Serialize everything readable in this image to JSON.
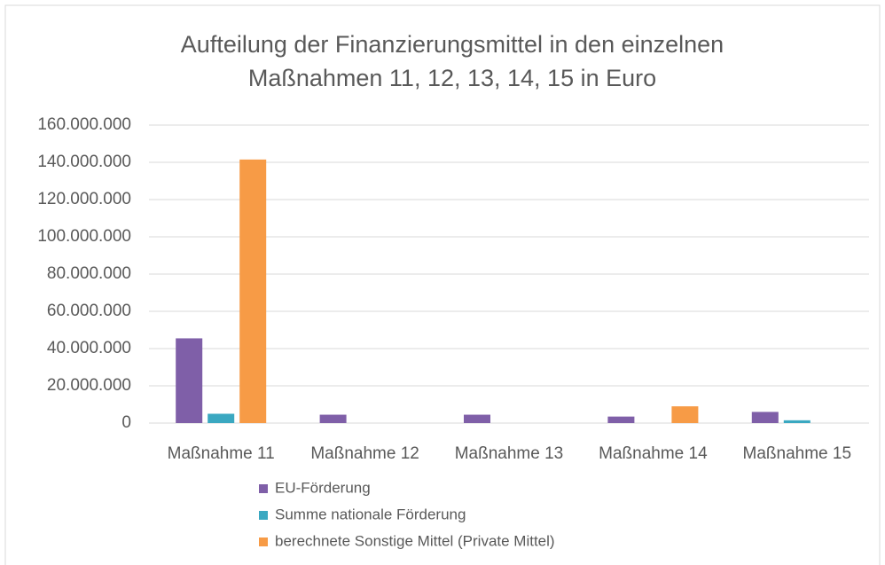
{
  "chart_data": {
    "type": "bar",
    "title": [
      "Aufteilung der Finanzierungsmittel in den einzelnen",
      "Maßnahmen 11, 12, 13, 14, 15 in Euro"
    ],
    "categories": [
      "Maßnahme 11",
      "Maßnahme 12",
      "Maßnahme 13",
      "Maßnahme 14",
      "Maßnahme 15"
    ],
    "series": [
      {
        "name": "EU-Förderung",
        "color": "#7f5fa8",
        "values": [
          45500000,
          4500000,
          4500000,
          3500000,
          6000000
        ]
      },
      {
        "name": "Summe nationale Förderung",
        "color": "#3aa8c1",
        "values": [
          5000000,
          0,
          0,
          0,
          1500000
        ]
      },
      {
        "name": "berechnete Sonstige Mittel (Private Mittel)",
        "color": "#f79b46",
        "values": [
          141500000,
          0,
          0,
          9000000,
          0
        ]
      }
    ],
    "ylim": [
      0,
      160000000
    ],
    "yticks": [
      0,
      {
        "value": 20000000,
        "label": "20.000.000"
      },
      {
        "value": 40000000,
        "label": "40.000.000"
      },
      {
        "value": 60000000,
        "label": "60.000.000"
      },
      {
        "value": 80000000,
        "label": "80.000.000"
      },
      {
        "value": 100000000,
        "label": "100.000.000"
      },
      {
        "value": 120000000,
        "label": "120.000.000"
      },
      {
        "value": 140000000,
        "label": "140.000.000"
      },
      {
        "value": 160000000,
        "label": "160.000.000"
      }
    ],
    "grid": true,
    "legend": "bottom"
  }
}
